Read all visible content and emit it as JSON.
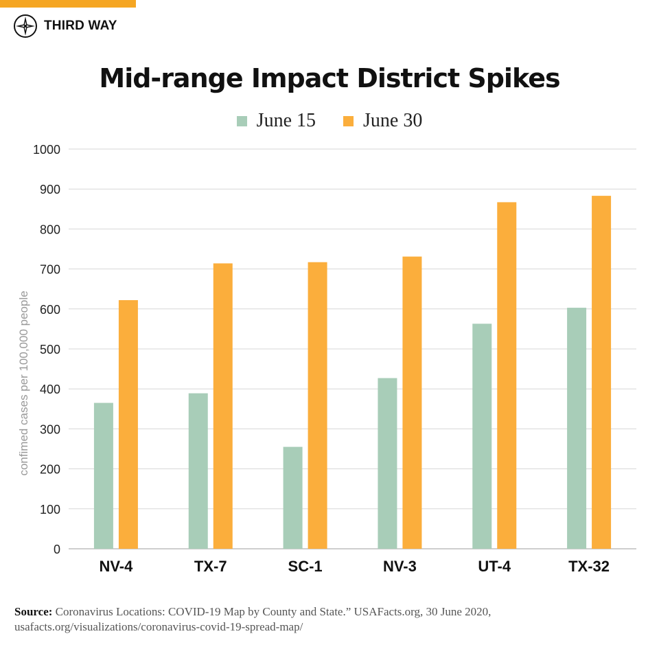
{
  "brand": {
    "name": "THIRD WAY",
    "accent_color": "#F5A623",
    "logo_icon": "compass-icon"
  },
  "source": {
    "label": "Source:",
    "line1": "Coronavirus Locations: COVID-19 Map by County and State.” USAFacts.org, 30 June 2020,",
    "line2": "usafacts.org/visualizations/coronavirus-covid-19-spread-map/"
  },
  "chart_data": {
    "type": "bar",
    "title": "Mid-range Impact District Spikes",
    "xlabel": "",
    "ylabel": "confimed cases per 100,000 people",
    "ylim": [
      0,
      1000
    ],
    "yticks": [
      0,
      100,
      200,
      300,
      400,
      500,
      600,
      700,
      800,
      900,
      1000
    ],
    "grid": true,
    "legend_position": "top-center",
    "categories": [
      "NV-4",
      "TX-7",
      "SC-1",
      "NV-3",
      "UT-4",
      "TX-32"
    ],
    "series": [
      {
        "name": "June 15",
        "color": "#A8CDB8",
        "values": [
          365,
          389,
          255,
          427,
          563,
          603
        ]
      },
      {
        "name": "June 30",
        "color": "#FBAE3C",
        "values": [
          622,
          714,
          717,
          731,
          867,
          883
        ]
      }
    ]
  }
}
